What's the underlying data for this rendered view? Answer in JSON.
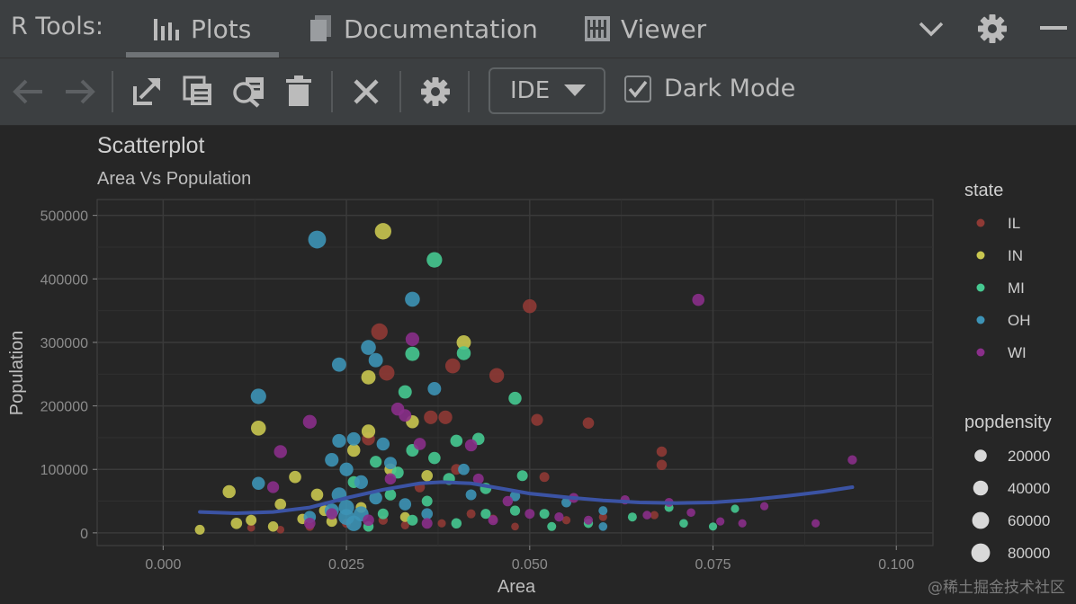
{
  "header": {
    "title": "R Tools:",
    "tabs": [
      {
        "label": "Plots",
        "icon": "bar-chart-icon",
        "active": true
      },
      {
        "label": "Documentation",
        "icon": "document-icon",
        "active": false
      },
      {
        "label": "Viewer",
        "icon": "viewer-icon",
        "active": false
      }
    ]
  },
  "toolbar": {
    "mode_value": "IDE",
    "dark_mode_label": "Dark Mode",
    "dark_mode_checked": true
  },
  "colors": {
    "IL": "#8f3a35",
    "IN": "#c9c750",
    "MI": "#46c991",
    "OH": "#3d93b6",
    "WI": "#8a2f8a",
    "smooth": "#3b53a4",
    "background": "#262626",
    "panel": "#3c3f41"
  },
  "watermark": "@稀土掘金技术社区",
  "chart_data": {
    "type": "scatter",
    "title": "Scatterplot",
    "subtitle": "Area Vs Population",
    "xlabel": "Area",
    "ylabel": "Population",
    "xlim": [
      -0.009,
      0.105
    ],
    "ylim": [
      -20000,
      525000
    ],
    "x_ticks": [
      "0.000",
      "0.025",
      "0.050",
      "0.075",
      "0.100"
    ],
    "x_tick_values": [
      0,
      0.025,
      0.05,
      0.075,
      0.1
    ],
    "y_ticks": [
      "0",
      "100000",
      "200000",
      "300000",
      "400000",
      "500000"
    ],
    "y_tick_values": [
      0,
      100000,
      200000,
      300000,
      400000,
      500000
    ],
    "grid": true,
    "legend_position": "right",
    "legend_color_title": "state",
    "legend_size_title": "popdensity",
    "size_legend": [
      {
        "label": "20000",
        "value": 20000
      },
      {
        "label": "40000",
        "value": 40000
      },
      {
        "label": "60000",
        "value": 60000
      },
      {
        "label": "80000",
        "value": 80000
      }
    ],
    "series": [
      {
        "name": "IL",
        "points": [
          {
            "x": 0.0295,
            "y": 317000,
            "d": 55000
          },
          {
            "x": 0.0305,
            "y": 252000,
            "d": 45000
          },
          {
            "x": 0.0395,
            "y": 263000,
            "d": 40000
          },
          {
            "x": 0.0455,
            "y": 248000,
            "d": 38000
          },
          {
            "x": 0.05,
            "y": 357000,
            "d": 32000
          },
          {
            "x": 0.0365,
            "y": 182000,
            "d": 30000
          },
          {
            "x": 0.0385,
            "y": 182000,
            "d": 30000
          },
          {
            "x": 0.051,
            "y": 178000,
            "d": 18000
          },
          {
            "x": 0.058,
            "y": 173000,
            "d": 15000
          },
          {
            "x": 0.068,
            "y": 128000,
            "d": 10000
          },
          {
            "x": 0.068,
            "y": 107000,
            "d": 10000
          },
          {
            "x": 0.028,
            "y": 148000,
            "d": 25000
          },
          {
            "x": 0.04,
            "y": 100000,
            "d": 12000
          },
          {
            "x": 0.052,
            "y": 88000,
            "d": 8000
          },
          {
            "x": 0.035,
            "y": 72000,
            "d": 10000
          },
          {
            "x": 0.042,
            "y": 30000,
            "d": 5000
          },
          {
            "x": 0.045,
            "y": 22000,
            "d": 4000
          },
          {
            "x": 0.055,
            "y": 20000,
            "d": 3000
          },
          {
            "x": 0.06,
            "y": 25000,
            "d": 3000
          },
          {
            "x": 0.067,
            "y": 28000,
            "d": 3000
          },
          {
            "x": 0.02,
            "y": 10000,
            "d": 4000
          },
          {
            "x": 0.025,
            "y": 15000,
            "d": 5000
          },
          {
            "x": 0.03,
            "y": 20000,
            "d": 6000
          },
          {
            "x": 0.033,
            "y": 12000,
            "d": 3000
          },
          {
            "x": 0.038,
            "y": 15000,
            "d": 3000
          },
          {
            "x": 0.048,
            "y": 10000,
            "d": 2000
          },
          {
            "x": 0.012,
            "y": 8000,
            "d": 2000
          },
          {
            "x": 0.016,
            "y": 5000,
            "d": 2000
          }
        ]
      },
      {
        "name": "IN",
        "points": [
          {
            "x": 0.03,
            "y": 475000,
            "d": 55000
          },
          {
            "x": 0.013,
            "y": 165000,
            "d": 40000
          },
          {
            "x": 0.041,
            "y": 300000,
            "d": 35000
          },
          {
            "x": 0.028,
            "y": 245000,
            "d": 35000
          },
          {
            "x": 0.028,
            "y": 160000,
            "d": 30000
          },
          {
            "x": 0.034,
            "y": 175000,
            "d": 25000
          },
          {
            "x": 0.009,
            "y": 65000,
            "d": 25000
          },
          {
            "x": 0.018,
            "y": 88000,
            "d": 20000
          },
          {
            "x": 0.021,
            "y": 60000,
            "d": 20000
          },
          {
            "x": 0.026,
            "y": 130000,
            "d": 25000
          },
          {
            "x": 0.031,
            "y": 100000,
            "d": 18000
          },
          {
            "x": 0.036,
            "y": 90000,
            "d": 15000
          },
          {
            "x": 0.01,
            "y": 15000,
            "d": 15000
          },
          {
            "x": 0.012,
            "y": 20000,
            "d": 12000
          },
          {
            "x": 0.015,
            "y": 10000,
            "d": 10000
          },
          {
            "x": 0.019,
            "y": 22000,
            "d": 10000
          },
          {
            "x": 0.023,
            "y": 18000,
            "d": 12000
          },
          {
            "x": 0.005,
            "y": 5000,
            "d": 8000
          },
          {
            "x": 0.027,
            "y": 40000,
            "d": 12000
          },
          {
            "x": 0.033,
            "y": 25000,
            "d": 8000
          },
          {
            "x": 0.016,
            "y": 45000,
            "d": 15000
          },
          {
            "x": 0.022,
            "y": 35000,
            "d": 12000
          }
        ]
      },
      {
        "name": "MI",
        "points": [
          {
            "x": 0.037,
            "y": 430000,
            "d": 45000
          },
          {
            "x": 0.034,
            "y": 282000,
            "d": 35000
          },
          {
            "x": 0.041,
            "y": 283000,
            "d": 32000
          },
          {
            "x": 0.033,
            "y": 222000,
            "d": 28000
          },
          {
            "x": 0.048,
            "y": 212000,
            "d": 25000
          },
          {
            "x": 0.04,
            "y": 145000,
            "d": 20000
          },
          {
            "x": 0.043,
            "y": 148000,
            "d": 20000
          },
          {
            "x": 0.034,
            "y": 130000,
            "d": 22000
          },
          {
            "x": 0.037,
            "y": 118000,
            "d": 20000
          },
          {
            "x": 0.029,
            "y": 112000,
            "d": 18000
          },
          {
            "x": 0.032,
            "y": 95000,
            "d": 18000
          },
          {
            "x": 0.039,
            "y": 85000,
            "d": 18000
          },
          {
            "x": 0.044,
            "y": 70000,
            "d": 15000
          },
          {
            "x": 0.049,
            "y": 90000,
            "d": 12000
          },
          {
            "x": 0.026,
            "y": 80000,
            "d": 18000
          },
          {
            "x": 0.031,
            "y": 60000,
            "d": 15000
          },
          {
            "x": 0.036,
            "y": 50000,
            "d": 12000
          },
          {
            "x": 0.048,
            "y": 35000,
            "d": 9000
          },
          {
            "x": 0.052,
            "y": 30000,
            "d": 8000
          },
          {
            "x": 0.058,
            "y": 15000,
            "d": 6000
          },
          {
            "x": 0.064,
            "y": 25000,
            "d": 5000
          },
          {
            "x": 0.069,
            "y": 40000,
            "d": 5000
          },
          {
            "x": 0.071,
            "y": 15000,
            "d": 4000
          },
          {
            "x": 0.075,
            "y": 10000,
            "d": 3000
          },
          {
            "x": 0.078,
            "y": 38000,
            "d": 3000
          },
          {
            "x": 0.034,
            "y": 20000,
            "d": 12000
          },
          {
            "x": 0.04,
            "y": 15000,
            "d": 10000
          },
          {
            "x": 0.044,
            "y": 30000,
            "d": 9000
          },
          {
            "x": 0.03,
            "y": 30000,
            "d": 12000
          },
          {
            "x": 0.028,
            "y": 10000,
            "d": 10000
          },
          {
            "x": 0.053,
            "y": 10000,
            "d": 5000
          }
        ]
      },
      {
        "name": "OH",
        "points": [
          {
            "x": 0.021,
            "y": 462000,
            "d": 70000
          },
          {
            "x": 0.034,
            "y": 368000,
            "d": 40000
          },
          {
            "x": 0.028,
            "y": 292000,
            "d": 40000
          },
          {
            "x": 0.029,
            "y": 272000,
            "d": 35000
          },
          {
            "x": 0.024,
            "y": 265000,
            "d": 35000
          },
          {
            "x": 0.013,
            "y": 215000,
            "d": 45000
          },
          {
            "x": 0.037,
            "y": 227000,
            "d": 28000
          },
          {
            "x": 0.024,
            "y": 145000,
            "d": 30000
          },
          {
            "x": 0.026,
            "y": 148000,
            "d": 28000
          },
          {
            "x": 0.023,
            "y": 115000,
            "d": 30000
          },
          {
            "x": 0.025,
            "y": 100000,
            "d": 30000
          },
          {
            "x": 0.03,
            "y": 140000,
            "d": 25000
          },
          {
            "x": 0.031,
            "y": 110000,
            "d": 22000
          },
          {
            "x": 0.027,
            "y": 80000,
            "d": 30000
          },
          {
            "x": 0.024,
            "y": 60000,
            "d": 40000
          },
          {
            "x": 0.025,
            "y": 40000,
            "d": 45000
          },
          {
            "x": 0.025,
            "y": 25000,
            "d": 50000
          },
          {
            "x": 0.026,
            "y": 15000,
            "d": 45000
          },
          {
            "x": 0.023,
            "y": 35000,
            "d": 35000
          },
          {
            "x": 0.027,
            "y": 30000,
            "d": 40000
          },
          {
            "x": 0.013,
            "y": 78000,
            "d": 25000
          },
          {
            "x": 0.02,
            "y": 25000,
            "d": 20000
          },
          {
            "x": 0.041,
            "y": 100000,
            "d": 15000
          },
          {
            "x": 0.042,
            "y": 60000,
            "d": 12000
          },
          {
            "x": 0.048,
            "y": 58000,
            "d": 10000
          },
          {
            "x": 0.055,
            "y": 48000,
            "d": 8000
          },
          {
            "x": 0.06,
            "y": 35000,
            "d": 5000
          },
          {
            "x": 0.06,
            "y": 10000,
            "d": 4000
          },
          {
            "x": 0.033,
            "y": 45000,
            "d": 20000
          },
          {
            "x": 0.029,
            "y": 55000,
            "d": 25000
          },
          {
            "x": 0.036,
            "y": 30000,
            "d": 15000
          }
        ]
      },
      {
        "name": "WI",
        "points": [
          {
            "x": 0.073,
            "y": 367000,
            "d": 20000
          },
          {
            "x": 0.034,
            "y": 305000,
            "d": 30000
          },
          {
            "x": 0.02,
            "y": 175000,
            "d": 30000
          },
          {
            "x": 0.032,
            "y": 195000,
            "d": 25000
          },
          {
            "x": 0.016,
            "y": 128000,
            "d": 25000
          },
          {
            "x": 0.035,
            "y": 140000,
            "d": 20000
          },
          {
            "x": 0.042,
            "y": 138000,
            "d": 20000
          },
          {
            "x": 0.033,
            "y": 185000,
            "d": 22000
          },
          {
            "x": 0.094,
            "y": 115000,
            "d": 6000
          },
          {
            "x": 0.015,
            "y": 72000,
            "d": 18000
          },
          {
            "x": 0.031,
            "y": 85000,
            "d": 15000
          },
          {
            "x": 0.043,
            "y": 85000,
            "d": 12000
          },
          {
            "x": 0.047,
            "y": 50000,
            "d": 10000
          },
          {
            "x": 0.056,
            "y": 55000,
            "d": 8000
          },
          {
            "x": 0.063,
            "y": 52000,
            "d": 6000
          },
          {
            "x": 0.069,
            "y": 48000,
            "d": 5000
          },
          {
            "x": 0.072,
            "y": 32000,
            "d": 4000
          },
          {
            "x": 0.076,
            "y": 18000,
            "d": 3000
          },
          {
            "x": 0.082,
            "y": 42000,
            "d": 3000
          },
          {
            "x": 0.089,
            "y": 15000,
            "d": 3000
          },
          {
            "x": 0.079,
            "y": 15000,
            "d": 3000
          },
          {
            "x": 0.054,
            "y": 25000,
            "d": 6000
          },
          {
            "x": 0.058,
            "y": 20000,
            "d": 5000
          },
          {
            "x": 0.066,
            "y": 28000,
            "d": 4000
          },
          {
            "x": 0.02,
            "y": 15000,
            "d": 15000
          },
          {
            "x": 0.028,
            "y": 20000,
            "d": 15000
          },
          {
            "x": 0.036,
            "y": 15000,
            "d": 12000
          },
          {
            "x": 0.045,
            "y": 20000,
            "d": 8000
          },
          {
            "x": 0.05,
            "y": 30000,
            "d": 8000
          },
          {
            "x": 0.023,
            "y": 30000,
            "d": 15000
          }
        ]
      }
    ],
    "smooth_line": {
      "x": [
        0.005,
        0.01,
        0.015,
        0.02,
        0.025,
        0.03,
        0.035,
        0.038,
        0.042,
        0.046,
        0.05,
        0.055,
        0.06,
        0.065,
        0.07,
        0.075,
        0.08,
        0.085,
        0.09,
        0.094
      ],
      "y": [
        33000,
        31000,
        33000,
        40000,
        55000,
        68000,
        78000,
        80000,
        78000,
        70000,
        62000,
        56000,
        51000,
        48000,
        47000,
        48000,
        52000,
        58000,
        65000,
        72000
      ]
    }
  }
}
